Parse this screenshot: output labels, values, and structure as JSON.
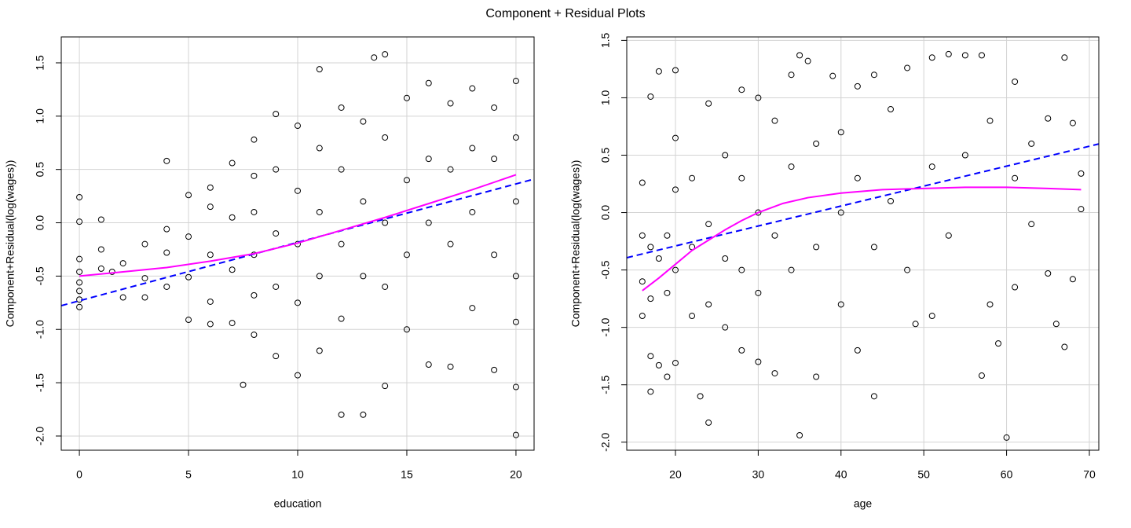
{
  "title": "Component + Residual Plots",
  "chart_data": [
    {
      "type": "scatter",
      "x_label": "education",
      "y_label": "Component+Residual(log(wages))",
      "xlim": [
        -0.83,
        20.83
      ],
      "ylim": [
        -2.133,
        1.743
      ],
      "xticks": [
        0,
        5,
        10,
        15,
        20
      ],
      "yticks": [
        {
          "value": -2,
          "label": "-2.0"
        },
        -1.5,
        {
          "value": -1,
          "label": "-1.0"
        },
        -0.5,
        {
          "value": 0,
          "label": "0.0"
        },
        0.5,
        {
          "value": 1,
          "label": "1.0"
        },
        1.5
      ],
      "grid": true,
      "series": [
        {
          "style": "points",
          "color": "#000000",
          "x": [
            0,
            0,
            0,
            0,
            0,
            0,
            0,
            0,
            1,
            1,
            1,
            1.5,
            2,
            2,
            3,
            3,
            3,
            4,
            4,
            4,
            4,
            5,
            5,
            5,
            5,
            6,
            6,
            6,
            6,
            6,
            7,
            7,
            7,
            7,
            7.5,
            8,
            8,
            8,
            8,
            8,
            8,
            9,
            9,
            9,
            9,
            9,
            10,
            10,
            10,
            10,
            10,
            11,
            11,
            11,
            11,
            11,
            12,
            12,
            12,
            12,
            12,
            13,
            13,
            13,
            13,
            13.5,
            14,
            14,
            14,
            14,
            14,
            15,
            15,
            15,
            15,
            16,
            16,
            16,
            16,
            17,
            17,
            17,
            17,
            18,
            18,
            18,
            18,
            19,
            19,
            19,
            19,
            20,
            20,
            20,
            20,
            20,
            20,
            20
          ],
          "values": [
            0.24,
            0.01,
            -0.34,
            -0.46,
            -0.56,
            -0.64,
            -0.72,
            -0.79,
            0.03,
            -0.25,
            -0.43,
            -0.46,
            -0.38,
            -0.7,
            -0.2,
            -0.52,
            -0.7,
            0.58,
            -0.06,
            -0.28,
            -0.6,
            0.26,
            -0.13,
            -0.51,
            -0.91,
            0.33,
            0.15,
            -0.3,
            -0.74,
            -0.95,
            0.56,
            0.05,
            -0.44,
            -0.94,
            -1.52,
            0.78,
            0.44,
            0.1,
            -0.3,
            -0.68,
            -1.05,
            1.02,
            0.5,
            -0.1,
            -0.6,
            -1.25,
            0.91,
            0.3,
            -0.2,
            -0.75,
            -1.43,
            1.44,
            0.7,
            0.1,
            -0.5,
            -1.2,
            1.08,
            0.5,
            -0.2,
            -0.9,
            -1.8,
            0.95,
            0.2,
            -0.5,
            -1.8,
            1.55,
            1.58,
            0.8,
            0.0,
            -0.6,
            -1.53,
            1.17,
            0.4,
            -0.3,
            -1.0,
            1.31,
            0.6,
            0.0,
            -1.33,
            1.12,
            0.5,
            -0.2,
            -1.35,
            1.26,
            0.7,
            0.1,
            -0.8,
            1.08,
            0.6,
            -0.3,
            -1.38,
            1.33,
            0.8,
            0.2,
            -0.5,
            -0.93,
            -1.54,
            -1.99
          ]
        },
        {
          "style": "dashed",
          "color": "#0000ff",
          "x": [
            -0.83,
            20.83
          ],
          "values": [
            -0.777,
            0.41
          ]
        },
        {
          "style": "solid",
          "color": "#ff00ff",
          "x": [
            0,
            2,
            4,
            6,
            8,
            10,
            12,
            14,
            16,
            18,
            20
          ],
          "values": [
            -0.5,
            -0.46,
            -0.42,
            -0.36,
            -0.29,
            -0.19,
            -0.07,
            0.05,
            0.18,
            0.31,
            0.45
          ]
        }
      ]
    },
    {
      "type": "scatter",
      "x_label": "age",
      "y_label": "Component+Residual(log(wages))",
      "xlim": [
        14.12,
        71.14
      ],
      "ylim": [
        -2.07,
        1.53
      ],
      "xticks": [
        20,
        30,
        40,
        50,
        60,
        70
      ],
      "yticks": [
        {
          "value": -2,
          "label": "-2.0"
        },
        -1.5,
        {
          "value": -1,
          "label": "-1.0"
        },
        -0.5,
        {
          "value": 0,
          "label": "0.0"
        },
        0.5,
        {
          "value": 1,
          "label": "1.0"
        },
        1.5
      ],
      "grid": true,
      "series": [
        {
          "style": "points",
          "color": "#000000",
          "x": [
            16,
            16,
            16,
            16,
            17,
            17,
            17,
            17,
            17,
            18,
            18,
            18,
            19,
            19,
            19,
            20,
            20,
            20,
            20,
            20,
            22,
            22,
            22,
            23,
            24,
            24,
            24,
            24,
            26,
            26,
            26,
            28,
            28,
            28,
            28,
            30,
            30,
            30,
            30,
            32,
            32,
            32,
            34,
            34,
            34,
            35,
            35,
            36,
            37,
            37,
            37,
            39,
            40,
            40,
            40,
            42,
            42,
            42,
            44,
            44,
            44,
            46,
            46,
            48,
            48,
            49,
            51,
            51,
            51,
            53,
            53,
            55,
            55,
            57,
            57,
            58,
            58,
            59,
            60,
            61,
            61,
            61,
            63,
            63,
            65,
            65,
            66,
            67,
            67,
            68,
            68,
            69,
            69
          ],
          "values": [
            0.26,
            -0.2,
            -0.6,
            -0.9,
            1.01,
            -0.3,
            -0.75,
            -1.25,
            -1.56,
            1.23,
            -0.4,
            -1.33,
            -0.2,
            -0.7,
            -1.43,
            1.24,
            0.65,
            0.2,
            -0.5,
            -1.31,
            0.3,
            -0.3,
            -0.9,
            -1.6,
            0.95,
            -0.1,
            -0.8,
            -1.83,
            0.5,
            -0.4,
            -1.0,
            1.07,
            0.3,
            -0.5,
            -1.2,
            1.0,
            0.0,
            -0.7,
            -1.3,
            0.8,
            -0.2,
            -1.4,
            1.2,
            0.4,
            -0.5,
            1.37,
            -1.94,
            1.32,
            0.6,
            -0.3,
            -1.43,
            1.19,
            0.7,
            0.0,
            -0.8,
            1.1,
            0.3,
            -1.2,
            1.2,
            -0.3,
            -1.6,
            0.9,
            0.1,
            1.26,
            -0.5,
            -0.97,
            1.35,
            0.4,
            -0.9,
            1.38,
            -0.2,
            1.37,
            0.5,
            1.37,
            -1.42,
            0.8,
            -0.8,
            -1.14,
            -1.96,
            1.14,
            0.3,
            -0.65,
            0.6,
            -0.1,
            0.82,
            -0.53,
            -0.97,
            1.35,
            -1.17,
            0.78,
            -0.58,
            0.34,
            0.03
          ]
        },
        {
          "style": "dashed",
          "color": "#0000ff",
          "x": [
            14.12,
            71.14
          ],
          "values": [
            -0.393,
            0.598
          ]
        },
        {
          "style": "solid",
          "color": "#ff00ff",
          "x": [
            16,
            18,
            20,
            22,
            24,
            26,
            28,
            30,
            33,
            36,
            40,
            45,
            50,
            55,
            60,
            65,
            69
          ],
          "values": [
            -0.68,
            -0.57,
            -0.45,
            -0.33,
            -0.24,
            -0.15,
            -0.07,
            0.0,
            0.08,
            0.13,
            0.17,
            0.2,
            0.21,
            0.22,
            0.22,
            0.21,
            0.2
          ]
        }
      ]
    }
  ]
}
